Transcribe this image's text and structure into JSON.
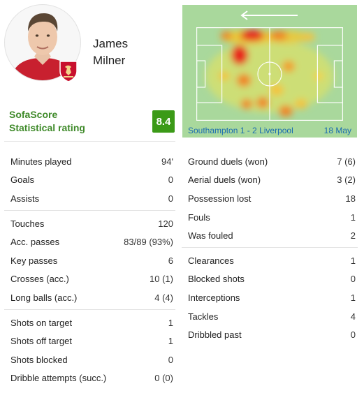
{
  "player": {
    "first_name": "James",
    "last_name": "Milner"
  },
  "rating": {
    "label_line1": "SofaScore",
    "label_line2": "Statistical rating",
    "value": "8.4",
    "color": "#3b9a17"
  },
  "match": {
    "label": "Southampton 1 - 2 Liverpool",
    "date": "18 May",
    "attack_direction": "left-arrow-icon"
  },
  "colors": {
    "pitch": "#a9d89c",
    "link": "#1a6cb0",
    "rating_label": "#3f8a2a"
  },
  "stats_left": [
    [
      {
        "label": "Minutes played",
        "value": "94'"
      },
      {
        "label": "Goals",
        "value": "0"
      },
      {
        "label": "Assists",
        "value": "0"
      }
    ],
    [
      {
        "label": "Touches",
        "value": "120"
      },
      {
        "label": "Acc. passes",
        "value": "83/89 (93%)"
      },
      {
        "label": "Key passes",
        "value": "6"
      },
      {
        "label": "Crosses (acc.)",
        "value": "10 (1)"
      },
      {
        "label": "Long balls (acc.)",
        "value": "4 (4)"
      }
    ],
    [
      {
        "label": "Shots on target",
        "value": "1"
      },
      {
        "label": "Shots off target",
        "value": "1"
      },
      {
        "label": "Shots blocked",
        "value": "0"
      },
      {
        "label": "Dribble attempts (succ.)",
        "value": "0 (0)"
      }
    ]
  ],
  "stats_right": [
    [
      {
        "label": "Ground duels (won)",
        "value": "7 (6)"
      },
      {
        "label": "Aerial duels (won)",
        "value": "3 (2)"
      },
      {
        "label": "Possession lost",
        "value": "18"
      },
      {
        "label": "Fouls",
        "value": "1"
      },
      {
        "label": "Was fouled",
        "value": "2"
      }
    ],
    [
      {
        "label": "Clearances",
        "value": "1"
      },
      {
        "label": "Blocked shots",
        "value": "0"
      },
      {
        "label": "Interceptions",
        "value": "1"
      },
      {
        "label": "Tackles",
        "value": "4"
      },
      {
        "label": "Dribbled past",
        "value": "0"
      }
    ]
  ]
}
